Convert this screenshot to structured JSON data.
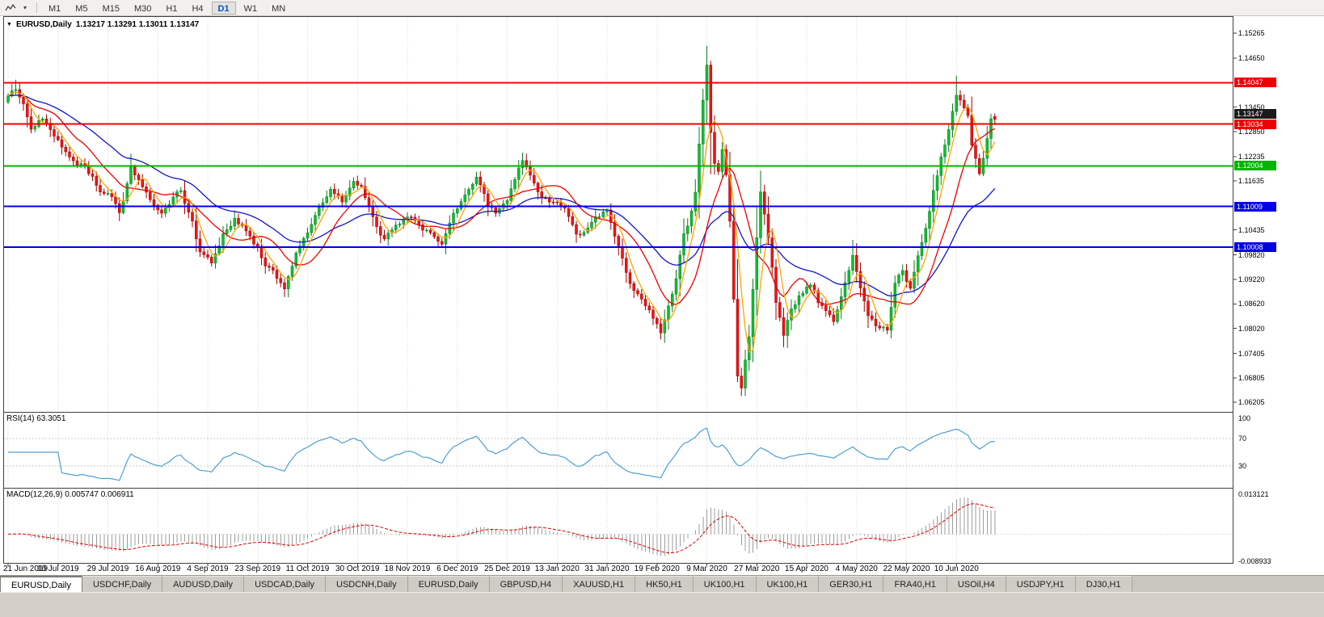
{
  "icons": {
    "menu_triangle": "▼",
    "caret_down": "▾"
  },
  "toolbar": {
    "timeframes": [
      {
        "label": "M1",
        "active": false
      },
      {
        "label": "M5",
        "active": false
      },
      {
        "label": "M15",
        "active": false
      },
      {
        "label": "M30",
        "active": false
      },
      {
        "label": "H1",
        "active": false
      },
      {
        "label": "H4",
        "active": false
      },
      {
        "label": "D1",
        "active": true
      },
      {
        "label": "W1",
        "active": false
      },
      {
        "label": "MN",
        "active": false
      }
    ]
  },
  "chart": {
    "title_symbol": "EURUSD,Daily",
    "title_ohlc": "1.13217 1.13291 1.13011 1.13147",
    "price_scale": {
      "ticks": [
        "1.15265",
        "1.14650",
        "1.13450",
        "1.12850",
        "1.12235",
        "1.11635",
        "1.10435",
        "1.09820",
        "1.09220",
        "1.08620",
        "1.08020",
        "1.07405",
        "1.06805",
        "1.06205"
      ],
      "current": {
        "label": "1.13147",
        "price": 1.13147
      }
    }
  },
  "rsi": {
    "label": "RSI(14) 63.3051",
    "value": 63.3051,
    "scale": [
      100,
      70,
      30
    ]
  },
  "macd": {
    "label": "MACD(12,26,9) 0.005747 0.006911",
    "value": 0.005747,
    "signal": 0.006911,
    "scale_max_label": "0.013121",
    "scale_min_label": "-0.008933"
  },
  "tabs": [
    {
      "label": "EURUSD,Daily",
      "active": true
    },
    {
      "label": "USDCHF,Daily",
      "active": false
    },
    {
      "label": "AUDUSD,Daily",
      "active": false
    },
    {
      "label": "USDCAD,Daily",
      "active": false
    },
    {
      "label": "USDCNH,Daily",
      "active": false
    },
    {
      "label": "EURUSD,Daily",
      "active": false
    },
    {
      "label": "GBPUSD,H4",
      "active": false
    },
    {
      "label": "XAUUSD,H1",
      "active": false
    },
    {
      "label": "HK50,H1",
      "active": false
    },
    {
      "label": "UK100,H1",
      "active": false
    },
    {
      "label": "UK100,H1",
      "active": false
    },
    {
      "label": "GER30,H1",
      "active": false
    },
    {
      "label": "FRA40,H1",
      "active": false
    },
    {
      "label": "USOil,H4",
      "active": false
    },
    {
      "label": "USDJPY,H1",
      "active": false
    },
    {
      "label": "DJ30,H1",
      "active": false
    }
  ],
  "colors": {
    "bull_fill": "#0fbf2f",
    "bull_line": "#0a7a1e",
    "bear_fill": "#ef1414",
    "bear_line": "#a00000",
    "ma_fast": "#ffa400",
    "ma_mid": "#f00000",
    "ma_slow": "#1414cc",
    "rsi_line": "#4e9fd4",
    "macd_hist": "#9c9c9c",
    "macd_signal": "#e00000",
    "grid": "#d9d9d9",
    "frame": "#404040"
  },
  "chart_data": {
    "type": "candlestick",
    "symbol": "EURUSD",
    "timeframe": "Daily",
    "title": "EURUSD,Daily",
    "ohlc_current": {
      "open": 1.13217,
      "high": 1.13291,
      "low": 1.13011,
      "close": 1.13147
    },
    "bars": 258,
    "price_range": [
      1.0605,
      1.156
    ],
    "x_labels": [
      "21 Jun 2019",
      "10 Jul 2019",
      "29 Jul 2019",
      "16 Aug 2019",
      "4 Sep 2019",
      "23 Sep 2019",
      "11 Oct 2019",
      "30 Oct 2019",
      "18 Nov 2019",
      "6 Dec 2019",
      "25 Dec 2019",
      "13 Jan 2020",
      "31 Jan 2020",
      "19 Feb 2020",
      "9 Mar 2020",
      "27 Mar 2020",
      "15 Apr 2020",
      "4 May 2020",
      "22 May 2020",
      "10 Jun 2020"
    ],
    "x_label_step_bars": 13,
    "levels": [
      {
        "label": "1.14047",
        "price": 1.14047,
        "color": "#f00000",
        "width": 2
      },
      {
        "label": "1.13034",
        "price": 1.13034,
        "color": "#f00000",
        "width": 2
      },
      {
        "label": "1.12004",
        "price": 1.12004,
        "color": "#00b400",
        "width": 2
      },
      {
        "label": "1.11009",
        "price": 1.11009,
        "color": "#0000e6",
        "width": 2
      },
      {
        "label": "1.10008",
        "price": 1.10008,
        "color": "#0000e6",
        "width": 2
      }
    ],
    "close_anchors": [
      [
        0,
        1.1372
      ],
      [
        2,
        1.139
      ],
      [
        4,
        1.135
      ],
      [
        6,
        1.129
      ],
      [
        9,
        1.132
      ],
      [
        13,
        1.1265
      ],
      [
        16,
        1.122
      ],
      [
        20,
        1.12
      ],
      [
        24,
        1.114
      ],
      [
        27,
        1.1125
      ],
      [
        29,
        1.1085
      ],
      [
        32,
        1.1195
      ],
      [
        35,
        1.115
      ],
      [
        38,
        1.11
      ],
      [
        40,
        1.1085
      ],
      [
        43,
        1.112
      ],
      [
        45,
        1.114
      ],
      [
        48,
        1.106
      ],
      [
        50,
        1.099
      ],
      [
        53,
        1.0965
      ],
      [
        56,
        1.103
      ],
      [
        59,
        1.107
      ],
      [
        62,
        1.104
      ],
      [
        64,
        1.1015
      ],
      [
        67,
        1.096
      ],
      [
        70,
        1.093
      ],
      [
        72,
        1.09
      ],
      [
        75,
        1.0985
      ],
      [
        78,
        1.104
      ],
      [
        81,
        1.11
      ],
      [
        84,
        1.1145
      ],
      [
        87,
        1.111
      ],
      [
        90,
        1.116
      ],
      [
        92,
        1.115
      ],
      [
        95,
        1.107
      ],
      [
        98,
        1.102
      ],
      [
        101,
        1.105
      ],
      [
        104,
        1.1075
      ],
      [
        107,
        1.106
      ],
      [
        110,
        1.103
      ],
      [
        113,
        1.1015
      ],
      [
        116,
        1.108
      ],
      [
        119,
        1.113
      ],
      [
        122,
        1.1175
      ],
      [
        125,
        1.111
      ],
      [
        127,
        1.1085
      ],
      [
        130,
        1.112
      ],
      [
        132,
        1.117
      ],
      [
        134,
        1.121
      ],
      [
        137,
        1.1165
      ],
      [
        139,
        1.112
      ],
      [
        142,
        1.1115
      ],
      [
        145,
        1.1095
      ],
      [
        148,
        1.103
      ],
      [
        150,
        1.1035
      ],
      [
        153,
        1.107
      ],
      [
        156,
        1.109
      ],
      [
        159,
        1.1
      ],
      [
        162,
        1.091
      ],
      [
        165,
        1.087
      ],
      [
        168,
        1.083
      ],
      [
        170,
        1.079
      ],
      [
        172,
        1.0855
      ],
      [
        174,
        1.093
      ],
      [
        176,
        1.103
      ],
      [
        178,
        1.109
      ],
      [
        179,
        1.1135
      ],
      [
        180,
        1.125
      ],
      [
        181,
        1.136
      ],
      [
        182,
        1.145
      ],
      [
        183,
        1.1285
      ],
      [
        184,
        1.121
      ],
      [
        185,
        1.1185
      ],
      [
        186,
        1.124
      ],
      [
        187,
        1.118
      ],
      [
        188,
        1.106
      ],
      [
        189,
        1.088
      ],
      [
        190,
        1.069
      ],
      [
        191,
        1.066
      ],
      [
        192,
        1.072
      ],
      [
        193,
        1.078
      ],
      [
        194,
        1.09
      ],
      [
        195,
        1.102
      ],
      [
        196,
        1.114
      ],
      [
        197,
        1.108
      ],
      [
        198,
        1.103
      ],
      [
        199,
        1.095
      ],
      [
        200,
        1.086
      ],
      [
        202,
        1.079
      ],
      [
        204,
        1.085
      ],
      [
        206,
        1.088
      ],
      [
        209,
        1.091
      ],
      [
        211,
        1.087
      ],
      [
        213,
        1.0845
      ],
      [
        215,
        1.082
      ],
      [
        217,
        1.088
      ],
      [
        220,
        1.098
      ],
      [
        222,
        1.09
      ],
      [
        224,
        1.0835
      ],
      [
        226,
        1.081
      ],
      [
        229,
        1.08
      ],
      [
        231,
        1.0915
      ],
      [
        233,
        1.094
      ],
      [
        235,
        1.09
      ],
      [
        237,
        1.098
      ],
      [
        239,
        1.105
      ],
      [
        241,
        1.1135
      ],
      [
        243,
        1.122
      ],
      [
        245,
        1.129
      ],
      [
        247,
        1.1375
      ],
      [
        249,
        1.134
      ],
      [
        250,
        1.1325
      ],
      [
        251,
        1.1255
      ],
      [
        253,
        1.118
      ],
      [
        254,
        1.1215
      ],
      [
        255,
        1.126
      ],
      [
        256,
        1.131
      ],
      [
        257,
        1.13147
      ]
    ],
    "spikes": [
      {
        "i": 2,
        "h": 1.1412
      },
      {
        "i": 72,
        "l": 1.0879
      },
      {
        "i": 170,
        "l": 1.0778
      },
      {
        "i": 182,
        "h": 1.1495
      },
      {
        "i": 191,
        "l": 1.0636
      },
      {
        "i": 196,
        "h": 1.1147
      },
      {
        "i": 220,
        "h": 1.1019
      },
      {
        "i": 247,
        "h": 1.1422
      }
    ],
    "moving_averages": [
      {
        "name": "fast",
        "type": "sma",
        "period": 5,
        "color_key": "ma_fast"
      },
      {
        "name": "medium",
        "type": "sma",
        "period": 13,
        "color_key": "ma_mid"
      },
      {
        "name": "slow",
        "type": "ema",
        "period": 34,
        "color_key": "ma_slow"
      }
    ],
    "rsi_period": 14,
    "rsi_levels": [
      70,
      30
    ],
    "macd_params": [
      12,
      26,
      9
    ],
    "macd_scale": {
      "max": 0.013121,
      "min": -0.008933
    }
  }
}
